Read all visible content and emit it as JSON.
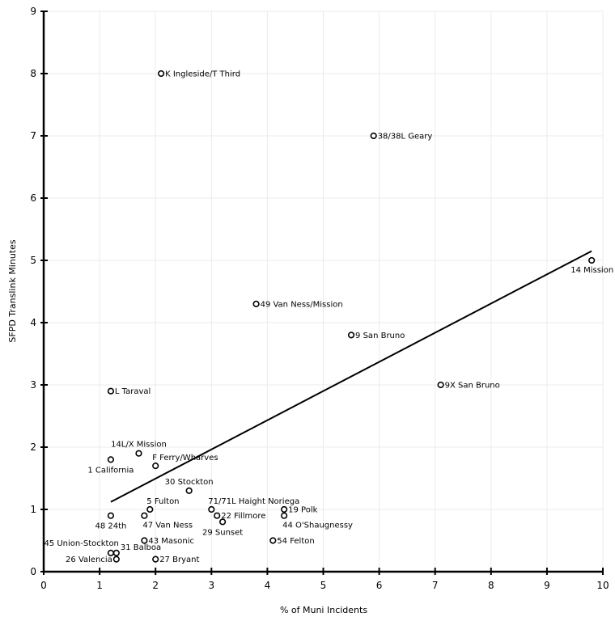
{
  "chart_data": {
    "type": "scatter",
    "title": "",
    "xlabel": "% of Muni Incidents",
    "ylabel": "SFPD Translink Minutes",
    "xlim": [
      0,
      10
    ],
    "ylim": [
      0,
      9
    ],
    "xticks": [
      "0",
      "1",
      "2",
      "3",
      "4",
      "5",
      "6",
      "7",
      "8",
      "9",
      "10"
    ],
    "yticks": [
      "0",
      "1",
      "2",
      "3",
      "4",
      "5",
      "6",
      "7",
      "8",
      "9"
    ],
    "grid": true,
    "legend": "none",
    "points": [
      {
        "label": "K Ingleside/T Third",
        "x": 2.1,
        "y": 8.0,
        "anchor": "right"
      },
      {
        "label": "38/38L Geary",
        "x": 5.9,
        "y": 7.0,
        "anchor": "right"
      },
      {
        "label": "14 Mission",
        "x": 9.8,
        "y": 5.0,
        "anchor": "below-left"
      },
      {
        "label": "49 Van Ness/Mission",
        "x": 3.8,
        "y": 4.3,
        "anchor": "right"
      },
      {
        "label": "9 San Bruno",
        "x": 5.5,
        "y": 3.8,
        "anchor": "right"
      },
      {
        "label": "9X San Bruno",
        "x": 7.1,
        "y": 3.0,
        "anchor": "right"
      },
      {
        "label": "L Taraval",
        "x": 1.2,
        "y": 2.9,
        "anchor": "right"
      },
      {
        "label": "14L/X Mission",
        "x": 1.7,
        "y": 1.9,
        "anchor": "above"
      },
      {
        "label": "1 California",
        "x": 1.2,
        "y": 1.8,
        "anchor": "below"
      },
      {
        "label": "F Ferry/Wharves",
        "x": 2.0,
        "y": 1.7,
        "anchor": "above-right"
      },
      {
        "label": "30 Stockton",
        "x": 2.6,
        "y": 1.3,
        "anchor": "above"
      },
      {
        "label": "5 Fulton",
        "x": 1.9,
        "y": 1.0,
        "anchor": "above-right"
      },
      {
        "label": "48 24th",
        "x": 1.2,
        "y": 0.9,
        "anchor": "below"
      },
      {
        "label": "47 Van Ness",
        "x": 1.8,
        "y": 0.9,
        "anchor": "below-right"
      },
      {
        "label": "71/71L Haight Noriega",
        "x": 3.0,
        "y": 1.0,
        "anchor": "above-right"
      },
      {
        "label": "22 Fillmore",
        "x": 3.1,
        "y": 0.9,
        "anchor": "right"
      },
      {
        "label": "29 Sunset",
        "x": 3.2,
        "y": 0.8,
        "anchor": "below"
      },
      {
        "label": "19 Polk",
        "x": 4.3,
        "y": 1.0,
        "anchor": "right"
      },
      {
        "label": "44 O'Shaugnessy",
        "x": 4.3,
        "y": 0.9,
        "anchor": "below-right"
      },
      {
        "label": "54 Felton",
        "x": 4.1,
        "y": 0.5,
        "anchor": "right"
      },
      {
        "label": "43 Masonic",
        "x": 1.8,
        "y": 0.5,
        "anchor": "right"
      },
      {
        "label": "45 Union-Stockton",
        "x": 1.2,
        "y": 0.3,
        "anchor": "above-left"
      },
      {
        "label": "31 Balboa",
        "x": 1.3,
        "y": 0.3,
        "anchor": "above-right"
      },
      {
        "label": "26 Valencia",
        "x": 1.3,
        "y": 0.2,
        "anchor": "left"
      },
      {
        "label": "27 Bryant",
        "x": 2.0,
        "y": 0.2,
        "anchor": "right"
      }
    ],
    "trendline": {
      "x": [
        1.2,
        9.8
      ],
      "y": [
        1.12,
        5.15
      ]
    }
  }
}
